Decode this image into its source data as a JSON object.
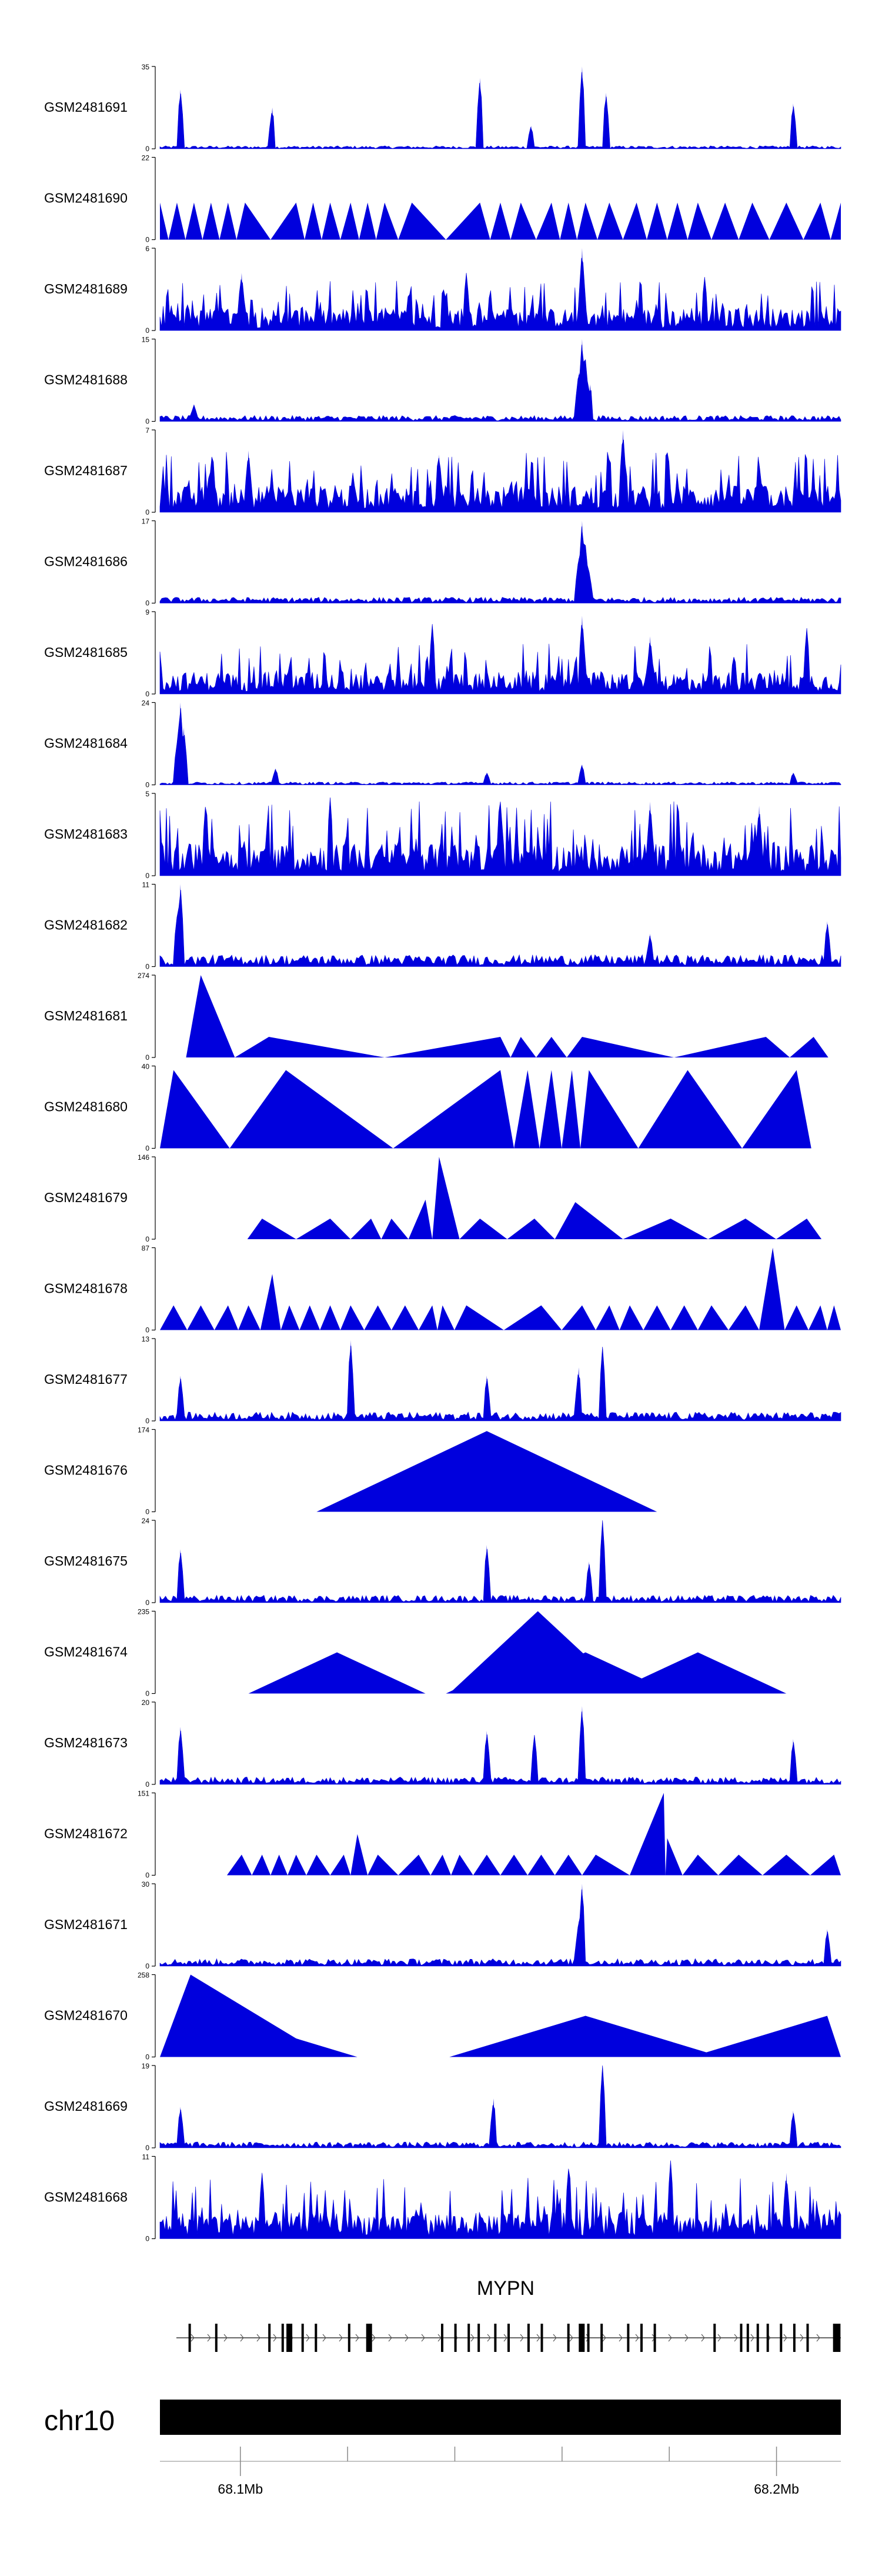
{
  "chart_data": {
    "type": "area",
    "title": "",
    "xlabel": "",
    "ylabel": "",
    "tracks": [
      {
        "name": "GSM2481691",
        "ymax": 35,
        "ymin": 0,
        "style": "spiky",
        "baseline": 2,
        "peaks": [
          [
            0.03,
            0.72
          ],
          [
            0.165,
            0.5
          ],
          [
            0.47,
            0.86
          ],
          [
            0.545,
            0.28
          ],
          [
            0.62,
            1.0
          ],
          [
            0.655,
            0.68
          ],
          [
            0.93,
            0.55
          ]
        ]
      },
      {
        "name": "GSM2481690",
        "ymax": 22,
        "ymin": 0,
        "style": "triangles",
        "pattern": "dense",
        "peaks": [
          [
            0.0,
            0.45
          ],
          [
            0.025,
            0.45
          ],
          [
            0.05,
            0.45
          ],
          [
            0.075,
            0.45
          ],
          [
            0.1,
            0.45
          ],
          [
            0.125,
            0.45
          ],
          [
            0.2,
            0.45
          ],
          [
            0.225,
            0.45
          ],
          [
            0.25,
            0.45
          ],
          [
            0.28,
            0.45
          ],
          [
            0.305,
            0.45
          ],
          [
            0.33,
            0.45
          ],
          [
            0.37,
            0.45
          ],
          [
            0.47,
            0.45
          ],
          [
            0.5,
            0.45
          ],
          [
            0.53,
            0.45
          ],
          [
            0.575,
            0.45
          ],
          [
            0.6,
            0.45
          ],
          [
            0.625,
            0.45
          ],
          [
            0.66,
            0.45
          ],
          [
            0.7,
            0.45
          ],
          [
            0.73,
            0.45
          ],
          [
            0.76,
            0.45
          ],
          [
            0.79,
            0.45
          ],
          [
            0.83,
            0.45
          ],
          [
            0.87,
            0.45
          ],
          [
            0.92,
            0.45
          ],
          [
            0.97,
            0.45
          ],
          [
            1.0,
            0.45
          ]
        ]
      },
      {
        "name": "GSM2481689",
        "ymax": 6,
        "ymin": 0,
        "style": "dense",
        "baseline": 15,
        "peaks": [
          [
            0.62,
            1.0
          ],
          [
            0.12,
            0.7
          ],
          [
            0.45,
            0.7
          ],
          [
            0.8,
            0.65
          ]
        ]
      },
      {
        "name": "GSM2481688",
        "ymax": 15,
        "ymin": 0,
        "style": "spiky",
        "baseline": 4,
        "peaks": [
          [
            0.62,
            1.0
          ],
          [
            0.625,
            0.75
          ],
          [
            0.615,
            0.6
          ],
          [
            0.632,
            0.45
          ],
          [
            0.05,
            0.2
          ]
        ]
      },
      {
        "name": "GSM2481687",
        "ymax": 7,
        "ymin": 0,
        "style": "dense",
        "baseline": 18,
        "peaks": [
          [
            0.68,
            1.0
          ],
          [
            0.13,
            0.75
          ],
          [
            0.41,
            0.7
          ],
          [
            0.88,
            0.6
          ]
        ]
      },
      {
        "name": "GSM2481686",
        "ymax": 17,
        "ymin": 0,
        "style": "spiky",
        "baseline": 4,
        "peaks": [
          [
            0.62,
            1.0
          ],
          [
            0.625,
            0.7
          ],
          [
            0.615,
            0.55
          ],
          [
            0.63,
            0.4
          ]
        ]
      },
      {
        "name": "GSM2481685",
        "ymax": 9,
        "ymin": 0,
        "style": "dense",
        "baseline": 15,
        "peaks": [
          [
            0.62,
            0.95
          ],
          [
            0.4,
            0.85
          ],
          [
            0.72,
            0.7
          ],
          [
            0.95,
            0.8
          ]
        ]
      },
      {
        "name": "GSM2481684",
        "ymax": 24,
        "ymin": 0,
        "style": "spiky",
        "baseline": 2,
        "peaks": [
          [
            0.03,
            1.0
          ],
          [
            0.035,
            0.7
          ],
          [
            0.025,
            0.5
          ],
          [
            0.62,
            0.25
          ],
          [
            0.17,
            0.2
          ],
          [
            0.48,
            0.15
          ],
          [
            0.93,
            0.15
          ]
        ]
      },
      {
        "name": "GSM2481683",
        "ymax": 5,
        "ymin": 0,
        "style": "dense",
        "baseline": 22,
        "peaks": [
          [
            0.25,
            0.95
          ],
          [
            0.5,
            0.9
          ],
          [
            0.72,
            0.9
          ],
          [
            0.88,
            0.85
          ]
        ]
      },
      {
        "name": "GSM2481682",
        "ymax": 11,
        "ymin": 0,
        "style": "spiky",
        "baseline": 8,
        "peaks": [
          [
            0.03,
            1.0
          ],
          [
            0.025,
            0.6
          ],
          [
            0.98,
            0.55
          ],
          [
            0.72,
            0.4
          ]
        ]
      },
      {
        "name": "GSM2481681",
        "ymax": 274,
        "ymin": 0,
        "style": "triangles",
        "peaks": [
          [
            0.06,
            1.0
          ],
          [
            0.16,
            0.25
          ],
          [
            0.5,
            0.25
          ],
          [
            0.53,
            0.25
          ],
          [
            0.575,
            0.25
          ],
          [
            0.62,
            0.25
          ],
          [
            0.89,
            0.25
          ],
          [
            0.96,
            0.25
          ]
        ]
      },
      {
        "name": "GSM2481680",
        "ymax": 40,
        "ymin": 0,
        "style": "triangles",
        "peaks": [
          [
            0.02,
            0.95
          ],
          [
            0.185,
            0.95
          ],
          [
            0.5,
            0.95
          ],
          [
            0.54,
            0.95
          ],
          [
            0.575,
            0.95
          ],
          [
            0.605,
            0.95
          ],
          [
            0.63,
            0.95
          ],
          [
            0.775,
            0.95
          ],
          [
            0.935,
            0.95
          ]
        ]
      },
      {
        "name": "GSM2481679",
        "ymax": 146,
        "ymin": 0,
        "style": "triangles",
        "peaks": [
          [
            0.15,
            0.25
          ],
          [
            0.25,
            0.25
          ],
          [
            0.31,
            0.25
          ],
          [
            0.34,
            0.25
          ],
          [
            0.39,
            0.48
          ],
          [
            0.41,
            1.0
          ],
          [
            0.47,
            0.25
          ],
          [
            0.55,
            0.25
          ],
          [
            0.61,
            0.45
          ],
          [
            0.75,
            0.25
          ],
          [
            0.86,
            0.25
          ],
          [
            0.95,
            0.25
          ]
        ]
      },
      {
        "name": "GSM2481678",
        "ymax": 87,
        "ymin": 0,
        "style": "triangles",
        "peaks": [
          [
            0.02,
            0.3
          ],
          [
            0.06,
            0.3
          ],
          [
            0.1,
            0.3
          ],
          [
            0.13,
            0.3
          ],
          [
            0.165,
            0.68
          ],
          [
            0.19,
            0.3
          ],
          [
            0.22,
            0.3
          ],
          [
            0.25,
            0.3
          ],
          [
            0.28,
            0.3
          ],
          [
            0.32,
            0.3
          ],
          [
            0.36,
            0.3
          ],
          [
            0.4,
            0.3
          ],
          [
            0.415,
            0.3
          ],
          [
            0.45,
            0.3
          ],
          [
            0.56,
            0.3
          ],
          [
            0.62,
            0.3
          ],
          [
            0.66,
            0.3
          ],
          [
            0.69,
            0.3
          ],
          [
            0.73,
            0.3
          ],
          [
            0.77,
            0.3
          ],
          [
            0.81,
            0.3
          ],
          [
            0.86,
            0.3
          ],
          [
            0.9,
            1.0
          ],
          [
            0.935,
            0.3
          ],
          [
            0.97,
            0.3
          ],
          [
            0.99,
            0.3
          ]
        ]
      },
      {
        "name": "GSM2481677",
        "ymax": 13,
        "ymin": 0,
        "style": "spiky",
        "baseline": 6,
        "peaks": [
          [
            0.28,
            0.98
          ],
          [
            0.65,
            0.9
          ],
          [
            0.615,
            0.65
          ],
          [
            0.03,
            0.55
          ],
          [
            0.48,
            0.55
          ]
        ]
      },
      {
        "name": "GSM2481676",
        "ymax": 174,
        "ymin": 0,
        "style": "triangles",
        "peaks": [
          [
            0.48,
            0.98
          ]
        ],
        "half": 0.25
      },
      {
        "name": "GSM2481675",
        "ymax": 24,
        "ymin": 0,
        "style": "spiky",
        "baseline": 5,
        "peaks": [
          [
            0.65,
            1.0
          ],
          [
            0.48,
            0.7
          ],
          [
            0.03,
            0.65
          ],
          [
            0.63,
            0.5
          ]
        ]
      },
      {
        "name": "GSM2481674",
        "ymax": 235,
        "ymin": 0,
        "style": "triangles",
        "peaks": [
          [
            0.26,
            0.5
          ],
          [
            0.55,
            0.5
          ],
          [
            0.555,
            1.0
          ],
          [
            0.6,
            0.45
          ],
          [
            0.625,
            0.5
          ],
          [
            0.79,
            0.5
          ]
        ],
        "half": 0.13
      },
      {
        "name": "GSM2481673",
        "ymax": 20,
        "ymin": 0,
        "style": "spiky",
        "baseline": 5,
        "peaks": [
          [
            0.62,
            0.95
          ],
          [
            0.03,
            0.7
          ],
          [
            0.48,
            0.65
          ],
          [
            0.55,
            0.6
          ],
          [
            0.93,
            0.55
          ]
        ]
      },
      {
        "name": "GSM2481672",
        "ymax": 151,
        "ymin": 0,
        "style": "triangles",
        "peaks": [
          [
            0.12,
            0.25
          ],
          [
            0.15,
            0.25
          ],
          [
            0.175,
            0.25
          ],
          [
            0.2,
            0.25
          ],
          [
            0.23,
            0.25
          ],
          [
            0.27,
            0.25
          ],
          [
            0.29,
            0.5
          ],
          [
            0.32,
            0.25
          ],
          [
            0.38,
            0.25
          ],
          [
            0.415,
            0.25
          ],
          [
            0.44,
            0.25
          ],
          [
            0.48,
            0.25
          ],
          [
            0.52,
            0.25
          ],
          [
            0.56,
            0.25
          ],
          [
            0.6,
            0.25
          ],
          [
            0.64,
            0.25
          ],
          [
            0.74,
            1.0
          ],
          [
            0.745,
            0.45
          ],
          [
            0.79,
            0.25
          ],
          [
            0.85,
            0.25
          ],
          [
            0.92,
            0.25
          ],
          [
            0.99,
            0.25
          ]
        ]
      },
      {
        "name": "GSM2481671",
        "ymax": 30,
        "ymin": 0,
        "style": "spiky",
        "baseline": 5,
        "peaks": [
          [
            0.62,
            1.0
          ],
          [
            0.615,
            0.55
          ],
          [
            0.98,
            0.45
          ]
        ]
      },
      {
        "name": "GSM2481670",
        "ymax": 258,
        "ymin": 0,
        "style": "triangles",
        "peaks": [
          [
            0.045,
            1.0
          ],
          [
            0.09,
            0.5
          ],
          [
            0.625,
            0.5
          ],
          [
            0.98,
            0.5
          ]
        ],
        "half": 0.2
      },
      {
        "name": "GSM2481669",
        "ymax": 19,
        "ymin": 0,
        "style": "spiky",
        "baseline": 4,
        "peaks": [
          [
            0.65,
            1.0
          ],
          [
            0.49,
            0.6
          ],
          [
            0.03,
            0.5
          ],
          [
            0.93,
            0.45
          ]
        ]
      },
      {
        "name": "GSM2481668",
        "ymax": 11,
        "ymin": 0,
        "style": "dense",
        "baseline": 18,
        "peaks": [
          [
            0.75,
            0.95
          ],
          [
            0.6,
            0.85
          ],
          [
            0.15,
            0.8
          ],
          [
            0.92,
            0.8
          ]
        ]
      }
    ],
    "gene": {
      "label": "MYPN",
      "exons": [
        0.02,
        0.06,
        0.14,
        0.16,
        0.17,
        0.19,
        0.21,
        0.26,
        0.29,
        0.4,
        0.42,
        0.44,
        0.455,
        0.48,
        0.5,
        0.53,
        0.55,
        0.59,
        0.61,
        0.62,
        0.64,
        0.68,
        0.7,
        0.72,
        0.81,
        0.85,
        0.86,
        0.875,
        0.89,
        0.91,
        0.93,
        0.95,
        0.99
      ],
      "thick_exons": [
        0.17,
        0.29,
        0.61,
        0.995
      ]
    },
    "ideogram": {
      "chromosome": "chr10",
      "x_range_mb": [
        68.085,
        68.212
      ],
      "ticks": [
        {
          "mb": 68.1,
          "label": "68.1Mb"
        },
        {
          "mb": 68.12,
          "label": ""
        },
        {
          "mb": 68.14,
          "label": ""
        },
        {
          "mb": 68.16,
          "label": ""
        },
        {
          "mb": 68.18,
          "label": ""
        },
        {
          "mb": 68.2,
          "label": "68.2Mb"
        }
      ]
    },
    "colors": {
      "fill": "#0000dd",
      "axis": "#000000",
      "text": "#000000"
    }
  }
}
